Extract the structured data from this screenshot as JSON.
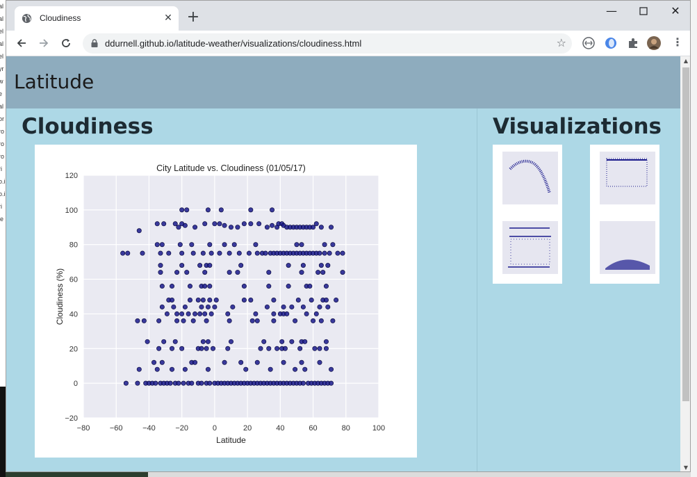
{
  "browser": {
    "tab_title": "Cloudiness",
    "url": "ddurnell.github.io/latitude-weather/visualizations/cloudiness.html"
  },
  "page": {
    "brand": "Latitude",
    "main_heading": "Cloudiness",
    "side_heading": "Visualizations"
  },
  "thumbnails": [
    {
      "name": "thumbnail-max-temperature"
    },
    {
      "name": "thumbnail-humidity"
    },
    {
      "name": "thumbnail-cloudiness"
    },
    {
      "name": "thumbnail-wind-speed"
    }
  ],
  "chart_data": {
    "type": "scatter",
    "title": "City Latitude vs. Cloudiness (01/05/17)",
    "xlabel": "Latitude",
    "ylabel": "Cloudiness (%)",
    "xlim": [
      -80,
      100
    ],
    "ylim": [
      -20,
      120
    ],
    "xticks": [
      "-80",
      "-60",
      "-40",
      "-20",
      "0",
      "20",
      "40",
      "60",
      "80",
      "100"
    ],
    "yticks": [
      "-20",
      "0",
      "20",
      "40",
      "60",
      "80",
      "100",
      "120"
    ],
    "grid": true,
    "point_color": "#1a1a8c",
    "points": [
      [
        -54,
        0
      ],
      [
        -47,
        0
      ],
      [
        -42,
        0
      ],
      [
        -40,
        0
      ],
      [
        -38,
        0
      ],
      [
        -36,
        0
      ],
      [
        -33,
        0
      ],
      [
        -31,
        0
      ],
      [
        -29,
        0
      ],
      [
        -27,
        0
      ],
      [
        -24,
        0
      ],
      [
        -22,
        0
      ],
      [
        -19,
        0
      ],
      [
        -16,
        0
      ],
      [
        -14,
        0
      ],
      [
        -10,
        0
      ],
      [
        -8,
        0
      ],
      [
        -5,
        0
      ],
      [
        -3,
        0
      ],
      [
        0,
        0
      ],
      [
        2,
        0
      ],
      [
        4,
        0
      ],
      [
        6,
        0
      ],
      [
        8,
        0
      ],
      [
        10,
        0
      ],
      [
        12,
        0
      ],
      [
        14,
        0
      ],
      [
        16,
        0
      ],
      [
        18,
        0
      ],
      [
        20,
        0
      ],
      [
        22,
        0
      ],
      [
        24,
        0
      ],
      [
        26,
        0
      ],
      [
        28,
        0
      ],
      [
        30,
        0
      ],
      [
        32,
        0
      ],
      [
        34,
        0
      ],
      [
        36,
        0
      ],
      [
        38,
        0
      ],
      [
        40,
        0
      ],
      [
        42,
        0
      ],
      [
        44,
        0
      ],
      [
        46,
        0
      ],
      [
        48,
        0
      ],
      [
        50,
        0
      ],
      [
        52,
        0
      ],
      [
        54,
        0
      ],
      [
        57,
        0
      ],
      [
        59,
        0
      ],
      [
        61,
        0
      ],
      [
        63,
        0
      ],
      [
        65,
        0
      ],
      [
        67,
        0
      ],
      [
        69,
        0
      ],
      [
        71,
        0
      ],
      [
        -56,
        75
      ],
      [
        -53,
        75
      ],
      [
        -44,
        75
      ],
      [
        -33,
        75
      ],
      [
        -28,
        75
      ],
      [
        -20,
        75
      ],
      [
        -13,
        75
      ],
      [
        -7,
        75
      ],
      [
        -2,
        75
      ],
      [
        3,
        75
      ],
      [
        9,
        75
      ],
      [
        15,
        75
      ],
      [
        21,
        75
      ],
      [
        26,
        75
      ],
      [
        29,
        75
      ],
      [
        31,
        75
      ],
      [
        34,
        75
      ],
      [
        36,
        75
      ],
      [
        38,
        75
      ],
      [
        40,
        75
      ],
      [
        42,
        75
      ],
      [
        44,
        75
      ],
      [
        46,
        75
      ],
      [
        48,
        75
      ],
      [
        50,
        75
      ],
      [
        52,
        75
      ],
      [
        54,
        75
      ],
      [
        56,
        75
      ],
      [
        58,
        75
      ],
      [
        60,
        75
      ],
      [
        62,
        75
      ],
      [
        64,
        75
      ],
      [
        67,
        75
      ],
      [
        70,
        75
      ],
      [
        75,
        75
      ],
      [
        78,
        75
      ],
      [
        -46,
        88
      ],
      [
        -35,
        92
      ],
      [
        -31,
        92
      ],
      [
        -24,
        92
      ],
      [
        -22,
        90
      ],
      [
        -20,
        92
      ],
      [
        -18,
        91
      ],
      [
        -12,
        90
      ],
      [
        -6,
        92
      ],
      [
        0,
        92
      ],
      [
        3,
        92
      ],
      [
        6,
        91
      ],
      [
        10,
        90
      ],
      [
        14,
        90
      ],
      [
        18,
        92
      ],
      [
        22,
        92
      ],
      [
        27,
        92
      ],
      [
        32,
        90
      ],
      [
        35,
        91
      ],
      [
        38,
        90
      ],
      [
        39,
        92
      ],
      [
        41,
        92
      ],
      [
        42,
        91
      ],
      [
        44,
        90
      ],
      [
        46,
        90
      ],
      [
        48,
        90
      ],
      [
        50,
        90
      ],
      [
        52,
        90
      ],
      [
        54,
        90
      ],
      [
        56,
        90
      ],
      [
        58,
        90
      ],
      [
        60,
        90
      ],
      [
        62,
        92
      ],
      [
        65,
        90
      ],
      [
        71,
        90
      ],
      [
        -20,
        100
      ],
      [
        -17,
        100
      ],
      [
        -4,
        100
      ],
      [
        4,
        100
      ],
      [
        22,
        100
      ],
      [
        35,
        100
      ],
      [
        -35,
        80
      ],
      [
        -32,
        80
      ],
      [
        -21,
        80
      ],
      [
        -14,
        80
      ],
      [
        -3,
        80
      ],
      [
        6,
        80
      ],
      [
        12,
        80
      ],
      [
        25,
        80
      ],
      [
        50,
        80
      ],
      [
        53,
        80
      ],
      [
        67,
        80
      ],
      [
        72,
        80
      ],
      [
        -33,
        68
      ],
      [
        -20,
        68
      ],
      [
        -9,
        68
      ],
      [
        -5,
        68
      ],
      [
        -3,
        68
      ],
      [
        16,
        68
      ],
      [
        45,
        68
      ],
      [
        54,
        68
      ],
      [
        65,
        68
      ],
      [
        69,
        68
      ],
      [
        -33,
        64
      ],
      [
        -23,
        64
      ],
      [
        -17,
        64
      ],
      [
        -6,
        64
      ],
      [
        9,
        64
      ],
      [
        14,
        64
      ],
      [
        33,
        64
      ],
      [
        53,
        64
      ],
      [
        63,
        64
      ],
      [
        66,
        64
      ],
      [
        78,
        64
      ],
      [
        -32,
        56
      ],
      [
        -26,
        56
      ],
      [
        -15,
        56
      ],
      [
        -8,
        56
      ],
      [
        -6,
        56
      ],
      [
        -3,
        56
      ],
      [
        18,
        56
      ],
      [
        33,
        56
      ],
      [
        45,
        56
      ],
      [
        56,
        56
      ],
      [
        58,
        56
      ],
      [
        68,
        56
      ],
      [
        -28,
        48
      ],
      [
        -26,
        48
      ],
      [
        -15,
        48
      ],
      [
        -10,
        48
      ],
      [
        -7,
        48
      ],
      [
        -3,
        48
      ],
      [
        1,
        48
      ],
      [
        18,
        48
      ],
      [
        22,
        48
      ],
      [
        36,
        48
      ],
      [
        51,
        48
      ],
      [
        59,
        48
      ],
      [
        66,
        48
      ],
      [
        68,
        48
      ],
      [
        74,
        48
      ],
      [
        -32,
        44
      ],
      [
        -25,
        44
      ],
      [
        -18,
        44
      ],
      [
        -8,
        44
      ],
      [
        -4,
        44
      ],
      [
        0,
        44
      ],
      [
        11,
        44
      ],
      [
        32,
        44
      ],
      [
        42,
        44
      ],
      [
        47,
        44
      ],
      [
        54,
        44
      ],
      [
        64,
        44
      ],
      [
        69,
        44
      ],
      [
        -47,
        36
      ],
      [
        -43,
        36
      ],
      [
        -34,
        36
      ],
      [
        -23,
        36
      ],
      [
        -19,
        36
      ],
      [
        -13,
        36
      ],
      [
        -5,
        36
      ],
      [
        9,
        36
      ],
      [
        23,
        36
      ],
      [
        26,
        36
      ],
      [
        36,
        36
      ],
      [
        49,
        36
      ],
      [
        60,
        36
      ],
      [
        65,
        36
      ],
      [
        72,
        36
      ],
      [
        -29,
        40
      ],
      [
        -23,
        40
      ],
      [
        -20,
        40
      ],
      [
        -16,
        40
      ],
      [
        -12,
        40
      ],
      [
        -9,
        40
      ],
      [
        -6,
        40
      ],
      [
        -2,
        40
      ],
      [
        8,
        40
      ],
      [
        25,
        40
      ],
      [
        36,
        40
      ],
      [
        40,
        40
      ],
      [
        42,
        40
      ],
      [
        44,
        40
      ],
      [
        56,
        40
      ],
      [
        62,
        40
      ],
      [
        -41,
        24
      ],
      [
        -31,
        24
      ],
      [
        -24,
        24
      ],
      [
        -7,
        24
      ],
      [
        -4,
        24
      ],
      [
        10,
        24
      ],
      [
        30,
        24
      ],
      [
        41,
        24
      ],
      [
        47,
        24
      ],
      [
        53,
        24
      ],
      [
        55,
        24
      ],
      [
        68,
        24
      ],
      [
        -34,
        20
      ],
      [
        -26,
        20
      ],
      [
        -20,
        20
      ],
      [
        -10,
        20
      ],
      [
        -8,
        20
      ],
      [
        -5,
        20
      ],
      [
        -1,
        20
      ],
      [
        8,
        20
      ],
      [
        28,
        20
      ],
      [
        33,
        20
      ],
      [
        38,
        20
      ],
      [
        41,
        20
      ],
      [
        43,
        20
      ],
      [
        52,
        20
      ],
      [
        61,
        20
      ],
      [
        64,
        20
      ],
      [
        68,
        20
      ],
      [
        -37,
        12
      ],
      [
        -32,
        12
      ],
      [
        -14,
        12
      ],
      [
        -12,
        12
      ],
      [
        6,
        12
      ],
      [
        16,
        12
      ],
      [
        26,
        12
      ],
      [
        42,
        12
      ],
      [
        53,
        12
      ],
      [
        64,
        12
      ],
      [
        -46,
        8
      ],
      [
        -35,
        8
      ],
      [
        -26,
        8
      ],
      [
        -18,
        8
      ],
      [
        -4,
        8
      ],
      [
        19,
        8
      ],
      [
        34,
        8
      ],
      [
        49,
        8
      ],
      [
        55,
        8
      ],
      [
        71,
        8
      ]
    ]
  }
}
